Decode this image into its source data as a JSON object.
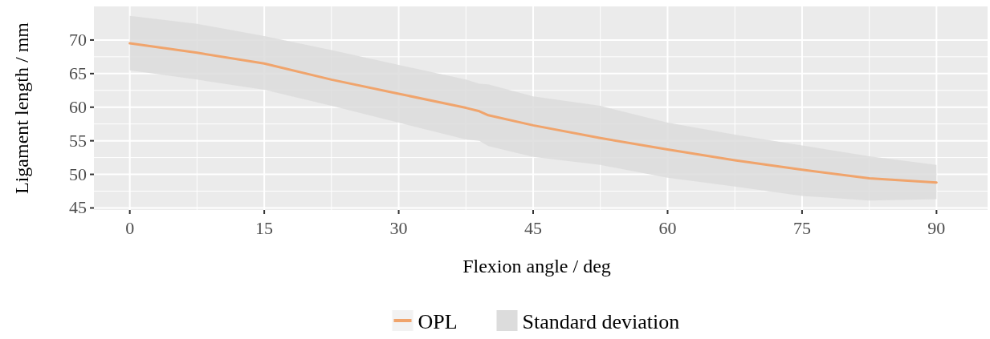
{
  "chart_data": {
    "type": "line",
    "xlabel": "Flexion angle / deg",
    "ylabel": "Ligament length / mm",
    "xlim": [
      -4,
      95.7
    ],
    "ylim": [
      44.7,
      75
    ],
    "xticks": [
      0,
      15,
      30,
      45,
      60,
      75,
      90
    ],
    "yticks": [
      45,
      50,
      55,
      60,
      65,
      70
    ],
    "grid": true,
    "legend": "bottom",
    "annotations": [
      "Standard deviation"
    ],
    "series": [
      {
        "name": "OPL",
        "color": "#f0a46c",
        "x": [
          0,
          7.5,
          15,
          22.5,
          30,
          37.5,
          39,
          40,
          45,
          52.5,
          60,
          67.5,
          75,
          82.5,
          90
        ],
        "values": [
          69.5,
          68.1,
          66.5,
          64.1,
          62.0,
          59.9,
          59.4,
          58.8,
          57.3,
          55.4,
          53.7,
          52.1,
          50.7,
          49.4,
          48.8
        ],
        "lower": [
          65.5,
          64.1,
          62.6,
          60.2,
          57.7,
          55.2,
          55.0,
          54.2,
          52.6,
          51.4,
          49.5,
          48.2,
          46.8,
          46.1,
          46.3
        ],
        "upper": [
          73.6,
          72.4,
          70.6,
          68.5,
          66.3,
          64.1,
          63.5,
          63.4,
          61.6,
          60.2,
          57.7,
          55.9,
          54.3,
          52.7,
          51.4
        ]
      }
    ]
  }
}
